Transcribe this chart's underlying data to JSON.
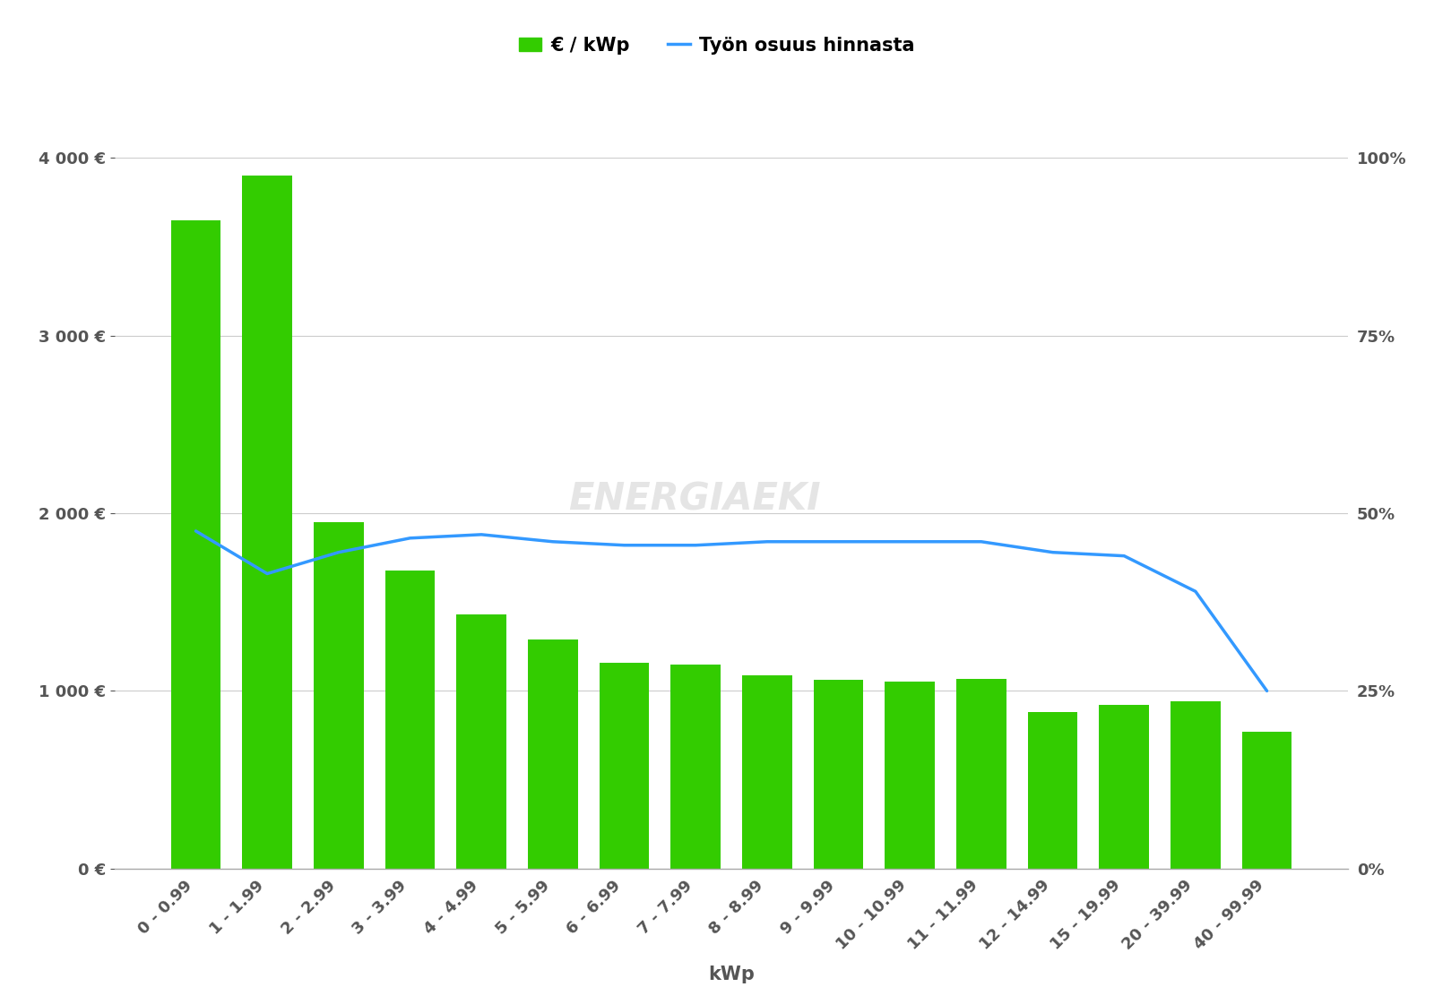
{
  "categories": [
    "0 - 0.99",
    "1 - 1.99",
    "2 - 2.99",
    "3 - 3.99",
    "4 - 4.99",
    "5 - 5.99",
    "6 - 6.99",
    "7 - 7.99",
    "8 - 8.99",
    "9 - 9.99",
    "10 - 10.99",
    "11 - 11.99",
    "12 - 14.99",
    "15 - 19.99",
    "20 - 39.99",
    "40 - 99.99"
  ],
  "bar_values": [
    3650,
    3900,
    1950,
    1680,
    1430,
    1290,
    1160,
    1150,
    1090,
    1060,
    1050,
    1070,
    880,
    920,
    940,
    770
  ],
  "line_values_pct": [
    47.5,
    41.5,
    44.5,
    46.5,
    47.0,
    46.0,
    45.5,
    45.5,
    46.0,
    46.0,
    46.0,
    46.0,
    44.5,
    44.0,
    39.0,
    25.0
  ],
  "bar_color": "#33cc00",
  "line_color": "#3399ff",
  "background_color": "#ffffff",
  "xlabel": "kWp",
  "legend_bar_label": "€ / kWp",
  "legend_line_label": "Työn osuus hinnasta",
  "ylim_left": [
    0,
    4000
  ],
  "ylim_right": [
    0,
    100
  ],
  "yticks_left": [
    0,
    1000,
    2000,
    3000,
    4000
  ],
  "ytick_labels_left": [
    "0 €",
    "1 000 €",
    "2 000 €",
    "3 000 €",
    "4 000 €"
  ],
  "yticks_right": [
    0,
    25,
    50,
    75,
    100
  ],
  "ytick_labels_right": [
    "0%",
    "25%",
    "50%",
    "75%",
    "100%"
  ],
  "grid_color": "#cccccc",
  "tick_label_color": "#555555",
  "tick_label_fontsize": 13,
  "legend_fontsize": 15,
  "xlabel_fontsize": 15
}
